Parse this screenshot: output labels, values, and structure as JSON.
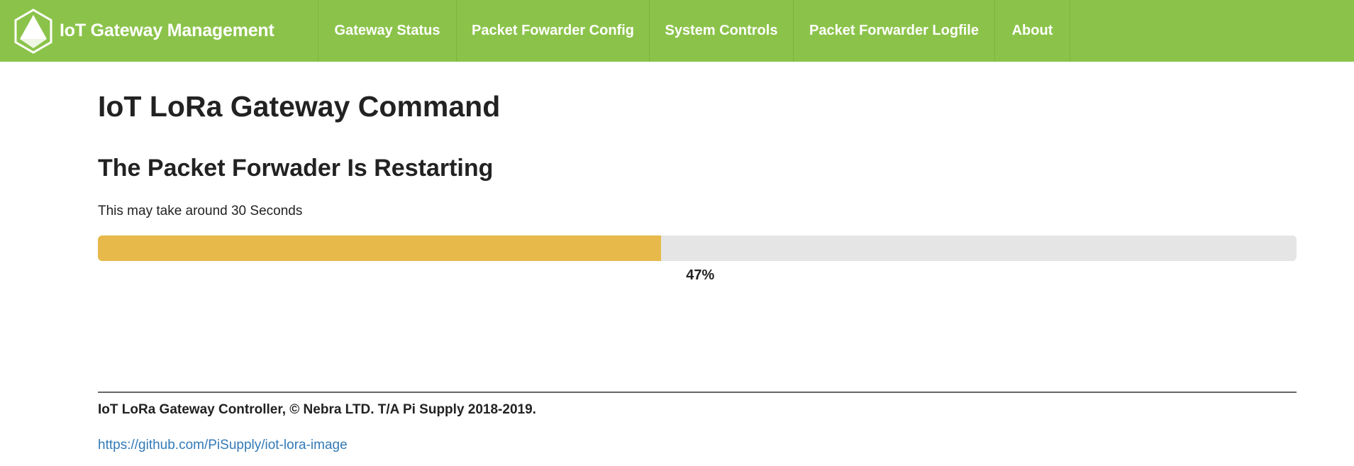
{
  "navbar": {
    "brand": "IoT Gateway Management",
    "items": [
      {
        "label": "Gateway Status"
      },
      {
        "label": "Packet Fowarder Config"
      },
      {
        "label": "System Controls"
      },
      {
        "label": "Packet Forwarder Logfile"
      },
      {
        "label": "About"
      }
    ]
  },
  "main": {
    "title": "IoT LoRa Gateway Command",
    "subtitle": "The Packet Forwader Is Restarting",
    "note": "This may take around 30 Seconds",
    "progress": {
      "percent": 47,
      "label": "47%"
    }
  },
  "footer": {
    "copyright": "IoT LoRa Gateway Controller, © Nebra LTD. T/A Pi Supply 2018-2019.",
    "link": "https://github.com/PiSupply/iot-lora-image"
  },
  "colors": {
    "navbar_bg": "#8bc34a",
    "progress_fill": "#e6b94a",
    "progress_track": "#e5e5e5",
    "link": "#337ab7"
  }
}
